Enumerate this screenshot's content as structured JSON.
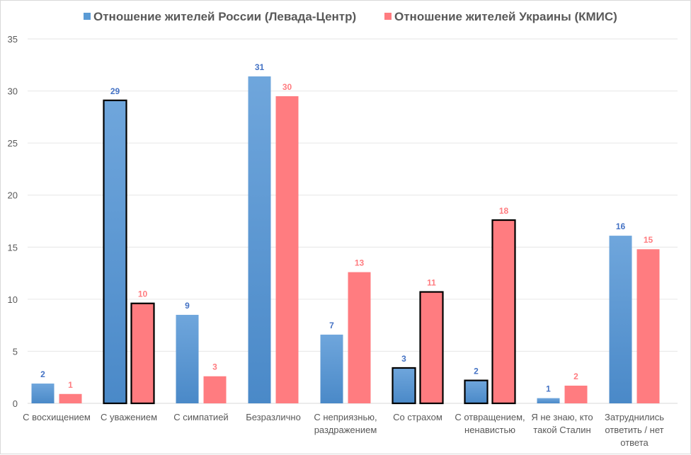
{
  "chart_data": {
    "type": "bar",
    "title": "",
    "xlabel": "",
    "ylabel": "",
    "ylim": [
      0,
      35
    ],
    "yticks": [
      0,
      5,
      10,
      15,
      20,
      25,
      30,
      35
    ],
    "grid": true,
    "legend_position": "top",
    "categories": [
      [
        "С восхищением"
      ],
      [
        "С уважением"
      ],
      [
        "С симпатией"
      ],
      [
        "Безразлично"
      ],
      [
        "С неприязнью,",
        "раздражением"
      ],
      [
        "Со страхом"
      ],
      [
        "С отвращением,",
        "ненавистью"
      ],
      [
        "Я не знаю, кто",
        "такой Сталин"
      ],
      [
        "Затруднились",
        "ответить / нет",
        "ответа"
      ]
    ],
    "highlighted_categories": [
      1,
      5,
      6
    ],
    "series": [
      {
        "name": "Отношение жителей России (Левада-Центр)",
        "color": "#5B9BD5",
        "label_color": "#4472C4",
        "values": [
          1.9,
          29.1,
          8.5,
          31.4,
          6.6,
          3.4,
          2.2,
          0.5,
          16.1
        ],
        "labels": [
          "2",
          "29",
          "9",
          "31",
          "7",
          "3",
          "2",
          "1",
          "16"
        ]
      },
      {
        "name": "Отношение жителей Украины (КМИС)",
        "color": "#FF7C80",
        "label_color": "#FF7C80",
        "values": [
          0.9,
          9.6,
          2.6,
          29.5,
          12.6,
          10.7,
          17.6,
          1.7,
          14.8
        ],
        "labels": [
          "1",
          "10",
          "3",
          "30",
          "13",
          "11",
          "18",
          "2",
          "15"
        ]
      }
    ]
  }
}
